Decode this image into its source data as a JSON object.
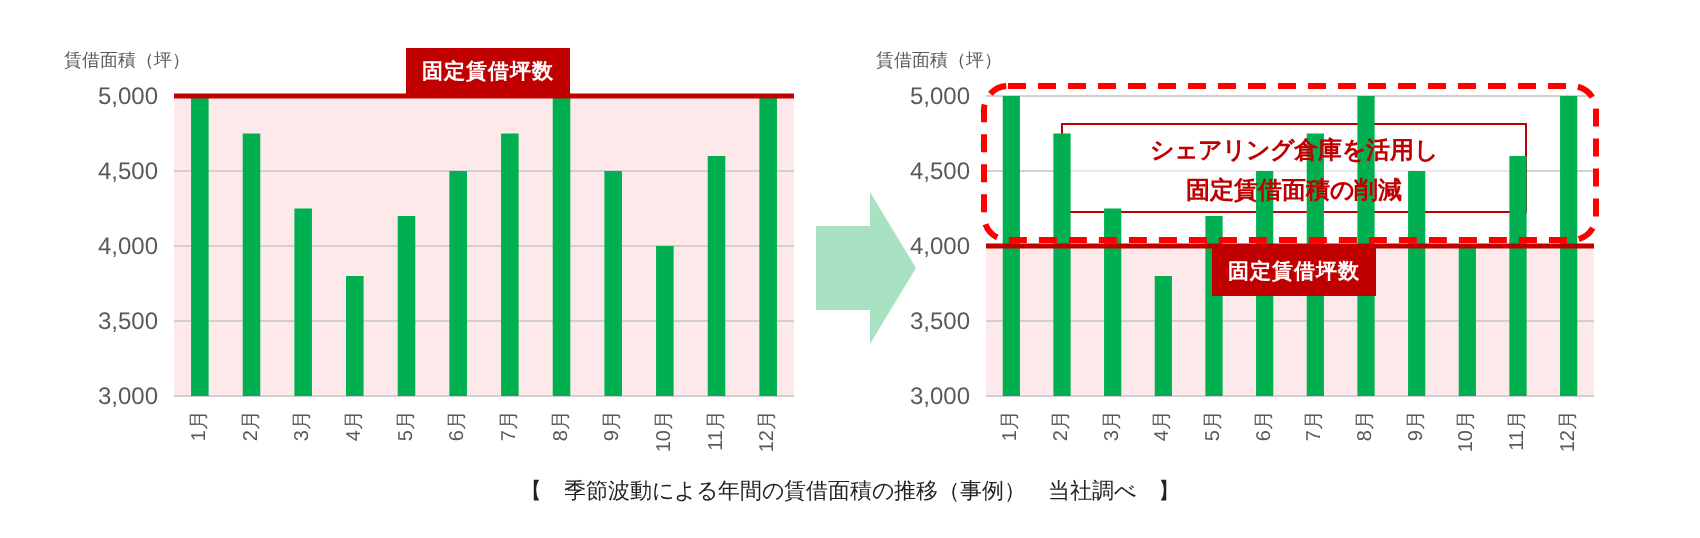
{
  "chart_data": [
    {
      "type": "bar",
      "ylabel": "賃借面積（坪）",
      "categories": [
        "1月",
        "2月",
        "3月",
        "4月",
        "5月",
        "6月",
        "7月",
        "8月",
        "9月",
        "10月",
        "11月",
        "12月"
      ],
      "values": [
        5000,
        4750,
        4250,
        3800,
        4200,
        4500,
        4750,
        5000,
        4500,
        4000,
        4600,
        5000
      ],
      "color": "#00b050",
      "ylim": [
        3000,
        5000
      ],
      "yticks": [
        {
          "value": 3000,
          "label": "3,000"
        },
        {
          "value": 3500,
          "label": "3,500"
        },
        {
          "value": 4000,
          "label": "4,000"
        },
        {
          "value": 4500,
          "label": "4,500"
        },
        {
          "value": 5000,
          "label": "5,000"
        }
      ],
      "grid": "y",
      "ref_lines": [
        {
          "axis": "y",
          "value": 5000,
          "label": "固定賃借坪数",
          "color": "#c00000"
        }
      ],
      "bands": [
        {
          "axis": "y",
          "from": 3000,
          "to": 5000,
          "color": "#fde9e9"
        }
      ],
      "annotations": [
        "【　季節波動による年間の賃借面積の推移（事例）　当社調べ　】"
      ]
    },
    {
      "type": "bar",
      "ylabel": "賃借面積（坪）",
      "categories": [
        "1月",
        "2月",
        "3月",
        "4月",
        "5月",
        "6月",
        "7月",
        "8月",
        "9月",
        "10月",
        "11月",
        "12月"
      ],
      "values": [
        5000,
        4750,
        4250,
        3800,
        4200,
        4500,
        4750,
        5000,
        4500,
        4000,
        4600,
        5000
      ],
      "color": "#00b050",
      "ylim": [
        3000,
        5000
      ],
      "yticks": [
        {
          "value": 3000,
          "label": "3,000"
        },
        {
          "value": 3500,
          "label": "3,500"
        },
        {
          "value": 4000,
          "label": "4,000"
        },
        {
          "value": 4500,
          "label": "4,500"
        },
        {
          "value": 5000,
          "label": "5,000"
        }
      ],
      "grid": "y",
      "ref_lines": [
        {
          "axis": "y",
          "value": 4000,
          "label": "固定賃借坪数",
          "color": "#c00000"
        }
      ],
      "bands": [
        {
          "axis": "y",
          "from": 3000,
          "to": 4000,
          "color": "#fde9e9"
        }
      ],
      "annotations": [
        "シェアリング倉庫を活用し固定賃借面積の削減"
      ]
    }
  ]
}
